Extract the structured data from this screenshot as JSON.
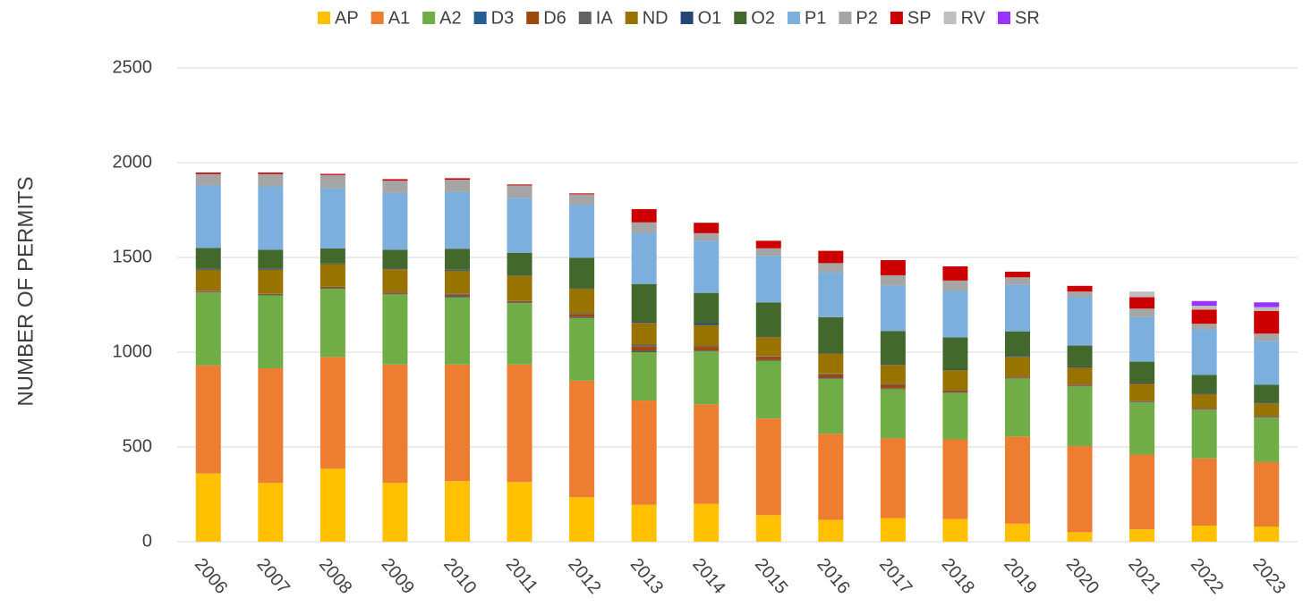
{
  "chart_data": {
    "type": "stacked_bar",
    "y_label": "NUMBER OF PERMITS",
    "categories": [
      "2006",
      "2007",
      "2008",
      "2009",
      "2010",
      "2011",
      "2012",
      "2013",
      "2014",
      "2015",
      "2016",
      "2017",
      "2018",
      "2019",
      "2020",
      "2021",
      "2022",
      "2023"
    ],
    "ylim": [
      0,
      2500
    ],
    "yticks": [
      0,
      500,
      1000,
      1500,
      2000,
      2500
    ],
    "grid": true,
    "legend": "top",
    "series": [
      {
        "name": "AP",
        "color": "#ffc000",
        "values": [
          360,
          310,
          385,
          310,
          320,
          315,
          235,
          195,
          200,
          140,
          115,
          125,
          120,
          95,
          50,
          65,
          85,
          80
        ]
      },
      {
        "name": "A1",
        "color": "#ed7d31",
        "values": [
          570,
          605,
          590,
          625,
          615,
          620,
          615,
          550,
          525,
          510,
          455,
          420,
          420,
          460,
          455,
          395,
          355,
          340
        ]
      },
      {
        "name": "A2",
        "color": "#70ad47",
        "values": [
          385,
          385,
          360,
          370,
          355,
          325,
          330,
          255,
          280,
          305,
          290,
          260,
          245,
          305,
          315,
          275,
          255,
          235
        ]
      },
      {
        "name": "D3",
        "color": "#255e91",
        "values": [
          2,
          2,
          2,
          2,
          5,
          2,
          5,
          5,
          3,
          3,
          3,
          3,
          2,
          2,
          2,
          2,
          2,
          2
        ]
      },
      {
        "name": "D6",
        "color": "#9e480e",
        "values": [
          5,
          5,
          5,
          8,
          10,
          8,
          15,
          25,
          20,
          20,
          20,
          20,
          10,
          5,
          5,
          5,
          5,
          5
        ]
      },
      {
        "name": "IA",
        "color": "#636363",
        "values": [
          3,
          3,
          3,
          3,
          5,
          3,
          5,
          10,
          5,
          2,
          5,
          5,
          3,
          3,
          3,
          3,
          3,
          3
        ]
      },
      {
        "name": "ND",
        "color": "#997300",
        "values": [
          110,
          125,
          120,
          120,
          120,
          130,
          130,
          115,
          110,
          100,
          105,
          100,
          105,
          105,
          90,
          90,
          75,
          65
        ]
      },
      {
        "name": "O1",
        "color": "#264478",
        "values": [
          5,
          5,
          3,
          4,
          5,
          2,
          3,
          5,
          10,
          3,
          2,
          3,
          3,
          5,
          5,
          5,
          5,
          3
        ]
      },
      {
        "name": "O2",
        "color": "#43682b",
        "values": [
          110,
          100,
          80,
          98,
          110,
          120,
          160,
          200,
          160,
          180,
          190,
          175,
          170,
          130,
          110,
          110,
          95,
          95
        ]
      },
      {
        "name": "P1",
        "color": "#7cafdd",
        "values": [
          330,
          335,
          317,
          300,
          300,
          290,
          280,
          270,
          275,
          245,
          235,
          240,
          245,
          245,
          255,
          235,
          240,
          230
        ]
      },
      {
        "name": "P2",
        "color": "#a5a5a5",
        "values": [
          60,
          65,
          70,
          65,
          65,
          65,
          55,
          55,
          40,
          40,
          50,
          55,
          55,
          40,
          30,
          45,
          30,
          40
        ]
      },
      {
        "name": "SP",
        "color": "#cc0000",
        "values": [
          8,
          8,
          6,
          8,
          8,
          5,
          5,
          70,
          55,
          40,
          65,
          80,
          75,
          30,
          30,
          60,
          75,
          120
        ]
      },
      {
        "name": "RV",
        "color": "#bfbfbf",
        "values": [
          0,
          0,
          0,
          0,
          0,
          0,
          0,
          0,
          0,
          0,
          0,
          0,
          0,
          0,
          0,
          30,
          20,
          20
        ]
      },
      {
        "name": "SR",
        "color": "#9933ff",
        "values": [
          0,
          0,
          0,
          0,
          0,
          0,
          0,
          0,
          0,
          0,
          0,
          0,
          0,
          0,
          0,
          0,
          25,
          25
        ]
      }
    ]
  }
}
